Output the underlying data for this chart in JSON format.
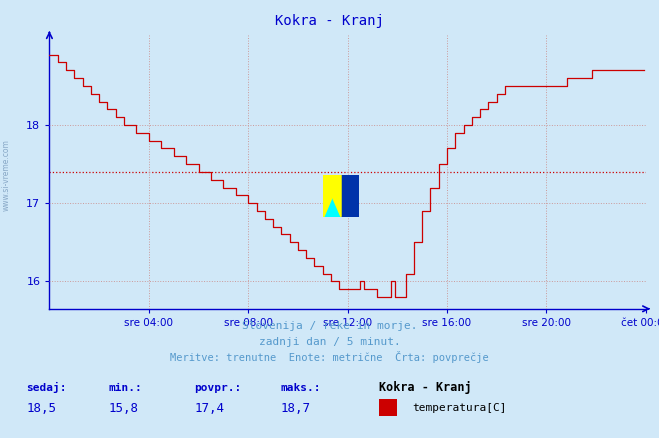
{
  "title": "Kokra - Kranj",
  "title_color": "#0000cc",
  "bg_color": "#d0e8f8",
  "plot_bg_color": "#d0e8f8",
  "line_color": "#cc0000",
  "avg_line_color": "#cc0000",
  "avg_value": 17.4,
  "y_min": 15.65,
  "y_max": 19.15,
  "y_ticks": [
    16,
    17,
    18
  ],
  "x_tick_labels": [
    "sre 04:00",
    "sre 08:00",
    "sre 12:00",
    "sre 16:00",
    "sre 20:00",
    "čet 00:00"
  ],
  "x_tick_positions": [
    48,
    96,
    144,
    192,
    240,
    288
  ],
  "total_points": 288,
  "grid_color": "#cc9999",
  "grid_style": ":",
  "sidebar_text": "www.si-vreme.com",
  "footer_line1": "Slovenija / reke in morje.",
  "footer_line2": "zadnji dan / 5 minut.",
  "footer_line3": "Meritve: trenutne  Enote: metrične  Črta: povprečje",
  "footer_color": "#5599cc",
  "stats_labels": [
    "sedaj:",
    "min.:",
    "povpr.:",
    "maks.:"
  ],
  "stats_values": [
    "18,5",
    "15,8",
    "17,4",
    "18,7"
  ],
  "legend_title": "Kokra - Kranj",
  "legend_label": "temperatura[C]",
  "legend_color": "#cc0000"
}
